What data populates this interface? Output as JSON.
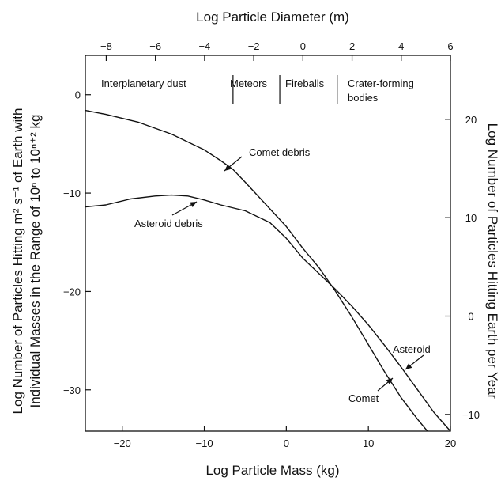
{
  "chart_data": {
    "type": "line",
    "title": "",
    "xlabel": "Log Particle Mass (kg)",
    "x2label": "Log Particle Diameter (m)",
    "ylabel_lines": [
      "Log Number of Particles Hitting m² s⁻¹ of Earth with",
      "Individual Masses in the Range of 10ⁿ to 10ⁿ⁺² kg"
    ],
    "y2label": "Log Number of Particles Hitting Earth per Year",
    "xlim": [
      -24.5,
      20
    ],
    "ylim": [
      -34.2,
      4
    ],
    "x2lim": [
      -8.85,
      6
    ],
    "y2lim": [
      -11.7,
      26.5
    ],
    "xticks": [
      -20,
      -10,
      0,
      10,
      20
    ],
    "yticks": [
      0,
      -10,
      -20,
      -30
    ],
    "x2ticks": [
      -8,
      -6,
      -4,
      -2,
      0,
      2,
      4,
      6
    ],
    "y2ticks": [
      20,
      10,
      0,
      -10
    ],
    "grid": false,
    "regions": [
      {
        "label": "Interplanetary dust",
        "x_end": -6.5
      },
      {
        "label": "Meteors",
        "x_end": -0.8
      },
      {
        "label": "Fireballs",
        "x_end": 6.2
      },
      {
        "label": "Crater-forming",
        "label2": "bodies"
      }
    ],
    "series": [
      {
        "name": "Comet debris",
        "x": [
          -24.5,
          -22,
          -18,
          -14,
          -10,
          -8,
          -6.5,
          -5,
          -2,
          0,
          2,
          4,
          5,
          6,
          8,
          10,
          12,
          14,
          16,
          18
        ],
        "y": [
          -1.6,
          -2.0,
          -2.8,
          -4.0,
          -5.6,
          -6.7,
          -7.6,
          -8.9,
          -11.6,
          -13.4,
          -15.6,
          -17.6,
          -18.8,
          -20.0,
          -22.6,
          -25.4,
          -28.2,
          -30.8,
          -33.0,
          -35.0
        ]
      },
      {
        "name": "Asteroid debris",
        "x": [
          -24.5,
          -22,
          -19,
          -16,
          -14,
          -12,
          -10,
          -8,
          -5,
          -2,
          0,
          2,
          4,
          6,
          8,
          10,
          12,
          14,
          16,
          18,
          20
        ],
        "y": [
          -11.4,
          -11.2,
          -10.6,
          -10.3,
          -10.2,
          -10.3,
          -10.7,
          -11.2,
          -11.8,
          -13.0,
          -14.6,
          -16.6,
          -18.2,
          -19.8,
          -21.5,
          -23.4,
          -25.5,
          -27.7,
          -30.0,
          -32.3,
          -34.2
        ]
      }
    ],
    "annotations": [
      {
        "text": "Comet debris",
        "x": -2,
        "y": -6.6
      },
      {
        "text": "Asteroid debris",
        "x": -18.5,
        "y": -13
      },
      {
        "text": "Asteroid",
        "x": 12.5,
        "y": -25.8
      },
      {
        "text": "Comet",
        "x": 7,
        "y": -30.8
      }
    ]
  }
}
